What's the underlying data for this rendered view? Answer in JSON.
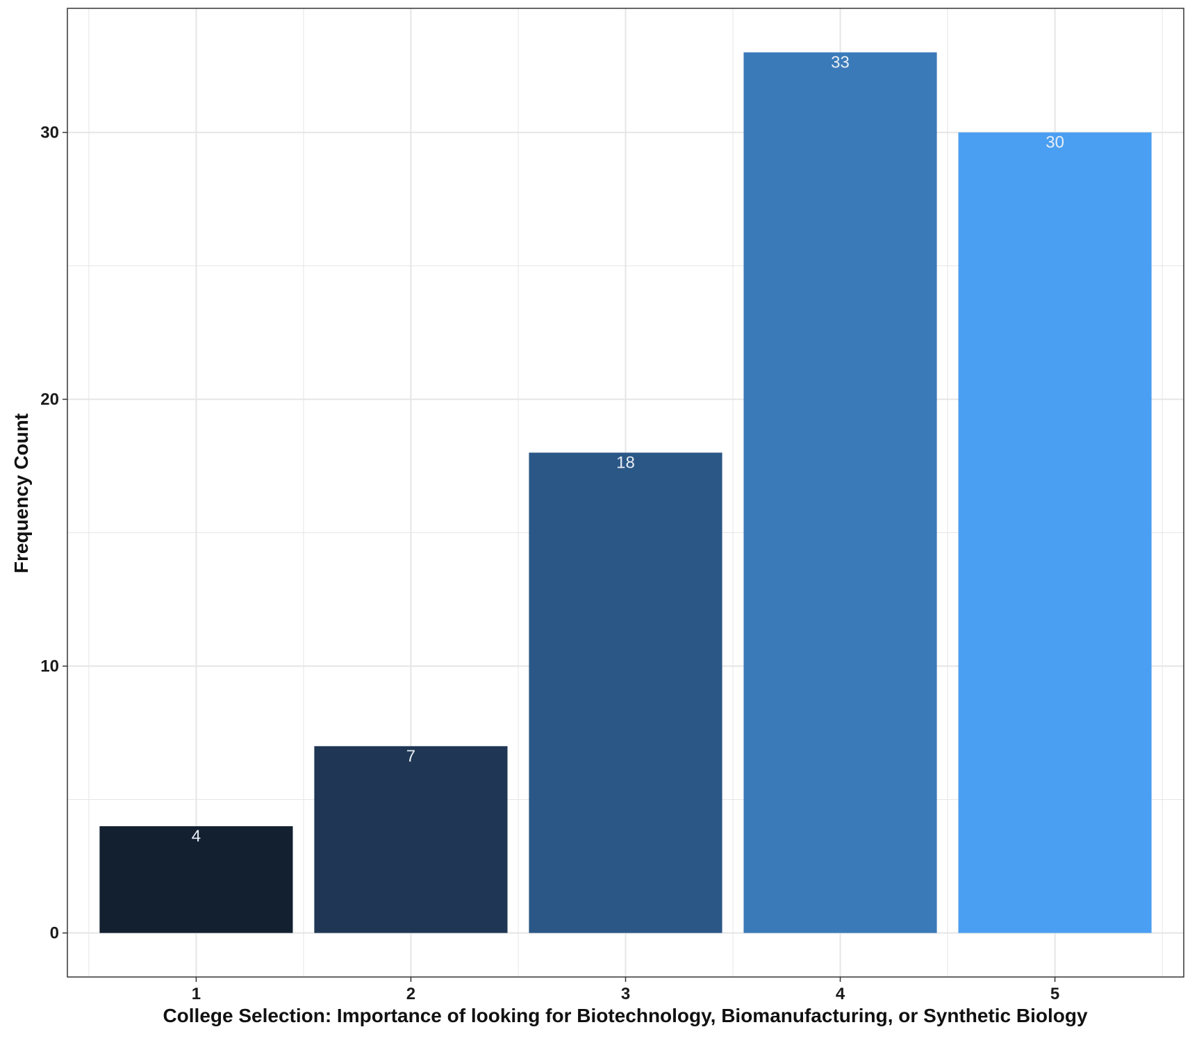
{
  "chart_data": {
    "type": "bar",
    "title": "",
    "xlabel": "College Selection: Importance of looking for Biotechnology, Biomanufacturing, or Synthetic Biology",
    "ylabel": "Frequency Count",
    "categories": [
      "1",
      "2",
      "3",
      "4",
      "5"
    ],
    "values": [
      4,
      7,
      18,
      33,
      30
    ],
    "data_labels": [
      "4",
      "7",
      "18",
      "33",
      "30"
    ],
    "bar_colors": [
      "#132030",
      "#1f3754",
      "#2b5786",
      "#3a7ab9",
      "#4a9ff2"
    ],
    "ylim": [
      -1.65,
      34.65
    ],
    "y_ticks": [
      0,
      10,
      20,
      30
    ],
    "y_tick_labels": [
      "0",
      "10",
      "20",
      "30"
    ],
    "grid": true,
    "legend": "none",
    "panel_border_color": "#333333",
    "grid_color": "#e5e5e5"
  }
}
